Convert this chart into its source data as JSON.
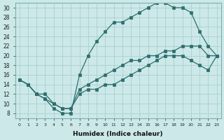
{
  "xlabel": "Humidex (Indice chaleur)",
  "bg_color": "#cce8e8",
  "grid_color": "#aacfcf",
  "line_color": "#2e6e6e",
  "xlim": [
    -0.5,
    23.5
  ],
  "ylim": [
    7,
    31
  ],
  "xticks": [
    0,
    1,
    2,
    3,
    4,
    5,
    6,
    7,
    8,
    9,
    10,
    11,
    12,
    13,
    14,
    15,
    16,
    17,
    18,
    19,
    20,
    21,
    22,
    23
  ],
  "yticks": [
    8,
    10,
    12,
    14,
    16,
    18,
    20,
    22,
    24,
    26,
    28,
    30
  ],
  "line1_x": [
    0,
    1,
    2,
    3,
    4,
    5,
    6,
    7,
    8,
    9,
    10,
    11,
    12,
    13,
    14,
    15,
    16,
    17,
    18,
    19,
    20,
    21,
    22,
    23
  ],
  "line1_y": [
    15,
    14,
    12,
    12,
    10,
    9,
    9,
    13,
    14,
    15,
    16,
    17,
    18,
    19,
    19,
    20,
    20,
    21,
    21,
    22,
    22,
    22,
    20,
    20
  ],
  "line2_x": [
    0,
    1,
    2,
    3,
    4,
    5,
    6,
    7,
    8,
    9,
    10,
    11,
    12,
    13,
    14,
    15,
    16,
    17,
    18,
    19,
    20,
    21,
    22,
    23
  ],
  "line2_y": [
    15,
    14,
    12,
    11,
    9,
    8,
    8,
    16,
    20,
    23,
    25,
    27,
    27,
    28,
    29,
    30,
    31,
    31,
    30,
    30,
    29,
    25,
    22,
    20
  ],
  "line3_x": [
    0,
    1,
    2,
    3,
    4,
    5,
    6,
    7,
    8,
    9,
    10,
    11,
    12,
    13,
    14,
    15,
    16,
    17,
    18,
    19,
    20,
    21,
    22,
    23
  ],
  "line3_y": [
    15,
    14,
    12,
    11,
    10,
    9,
    9,
    12,
    13,
    13,
    14,
    14,
    15,
    16,
    17,
    18,
    19,
    20,
    20,
    20,
    19,
    18,
    17,
    20
  ]
}
